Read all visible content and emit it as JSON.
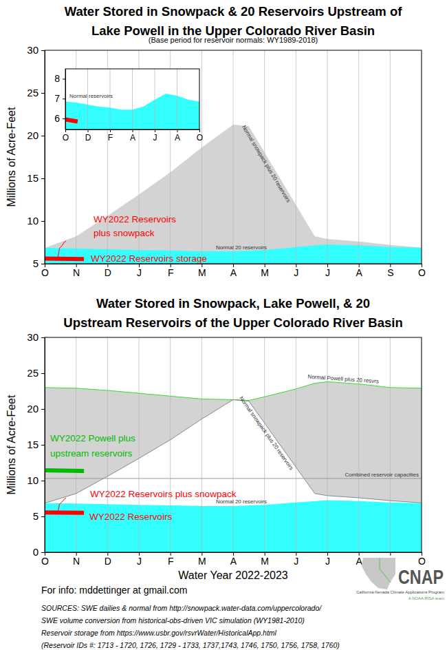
{
  "chart_data": [
    {
      "type": "area",
      "title": "Water Stored in Snowpack & 20 Reservoirs Upstream of\nLake Powell in the Upper Colorado River Basin",
      "subtitle": "(Base period for reservoir normals: WY1989-2018)",
      "y_label": "Millions of Acre-Feet",
      "xlim": [
        0,
        12
      ],
      "xticks": [
        {
          "value": 0,
          "label": "O"
        },
        {
          "value": 1,
          "label": "N"
        },
        {
          "value": 2,
          "label": "D"
        },
        {
          "value": 3,
          "label": "J"
        },
        {
          "value": 4,
          "label": "F"
        },
        {
          "value": 5,
          "label": "M"
        },
        {
          "value": 6,
          "label": "A"
        },
        {
          "value": 7,
          "label": "M"
        },
        {
          "value": 8,
          "label": "J"
        },
        {
          "value": 9,
          "label": "J"
        },
        {
          "value": 10,
          "label": "A"
        },
        {
          "value": 11,
          "label": "S"
        },
        {
          "value": 12,
          "label": "O"
        }
      ],
      "ylim": [
        5,
        30
      ],
      "yticks": [
        5,
        10,
        15,
        20,
        25,
        30
      ],
      "grid": "x",
      "series": [
        {
          "name": "Normal snowpack plus 20 reservoirs",
          "type": "area",
          "color": "#d3d3d3",
          "x": [
            0,
            1,
            2,
            3,
            4,
            5,
            6,
            6.5,
            8.6,
            9,
            10,
            11,
            12
          ],
          "values": [
            6.85,
            8.2,
            10.6,
            13.1,
            15.7,
            18.6,
            21.3,
            21.1,
            8.2,
            7.9,
            7.6,
            7.2,
            6.9
          ]
        },
        {
          "name": "Normal 20 reservoirs",
          "type": "area",
          "color": "#33ffff",
          "x": [
            0,
            1,
            2,
            3,
            4,
            5,
            6,
            7,
            8,
            9,
            10,
            11,
            12
          ],
          "values": [
            6.85,
            6.8,
            6.7,
            6.6,
            6.55,
            6.45,
            6.45,
            6.6,
            6.95,
            7.25,
            7.15,
            6.95,
            6.85
          ]
        },
        {
          "name": "WY2022 Reservoirs\nplus snowpack",
          "type": "line",
          "color": "#ff0000",
          "line_style": "solid",
          "x": [
            0,
            0.42,
            0.47,
            0.55,
            0.62,
            0.68
          ],
          "values": [
            5.65,
            5.7,
            6.8,
            7.1,
            7.5,
            7.65
          ]
        },
        {
          "name": "WY2022 Reservoirs storage",
          "type": "line",
          "color": "#ff0000",
          "line_style": "bold",
          "x": [
            0,
            1.25
          ],
          "values": [
            5.6,
            5.55
          ]
        }
      ]
    },
    {
      "type": "area",
      "xlim": [
        0,
        12
      ],
      "xticks": [
        {
          "value": 0,
          "label": "O"
        },
        {
          "value": 2,
          "label": "D"
        },
        {
          "value": 4,
          "label": "F"
        },
        {
          "value": 6,
          "label": "A"
        },
        {
          "value": 8,
          "label": "J"
        },
        {
          "value": 10,
          "label": "A"
        },
        {
          "value": 12,
          "label": "O"
        }
      ],
      "ylim": [
        5.45,
        8.5
      ],
      "yticks": [
        6,
        7,
        8
      ],
      "grid": "x",
      "series": [
        {
          "name": "Normal reservoirs",
          "type": "area",
          "color": "#33ffff",
          "x": [
            0,
            1,
            2,
            3,
            4,
            5,
            6,
            7,
            8,
            9,
            10,
            11,
            12
          ],
          "values": [
            6.85,
            6.8,
            6.7,
            6.6,
            6.55,
            6.45,
            6.45,
            6.6,
            6.95,
            7.25,
            7.15,
            6.95,
            6.85
          ]
        },
        {
          "type": "line",
          "color": "#ff0000",
          "line_style": "bold",
          "x": [
            0,
            1.1
          ],
          "values": [
            5.95,
            5.85
          ]
        }
      ]
    },
    {
      "type": "area",
      "title": "Water Stored in Snowpack, Lake Powell, & 20\nUpstream Reservoirs of the Upper Colorado River Basin",
      "y_label": "Millions of Acre-Feet",
      "x_label": "Water Year 2022-2023",
      "xlim": [
        0,
        12
      ],
      "xticks": [
        {
          "value": 0,
          "label": "O"
        },
        {
          "value": 1,
          "label": "N"
        },
        {
          "value": 2,
          "label": "D"
        },
        {
          "value": 3,
          "label": "J"
        },
        {
          "value": 4,
          "label": "F"
        },
        {
          "value": 5,
          "label": "M"
        },
        {
          "value": 6,
          "label": "A"
        },
        {
          "value": 7,
          "label": "M"
        },
        {
          "value": 8,
          "label": "J"
        },
        {
          "value": 9,
          "label": "J"
        },
        {
          "value": 10,
          "label": "A"
        },
        {
          "value": 11,
          "label": "S"
        },
        {
          "value": 12,
          "label": "O"
        }
      ],
      "ylim": [
        0,
        30
      ],
      "yticks": [
        0,
        5,
        10,
        15,
        20,
        25,
        30
      ],
      "grid": "x",
      "series": [
        {
          "type": "area",
          "color": "#d3d3d3",
          "x": [
            0,
            1,
            2,
            3,
            4,
            5,
            6,
            6.5,
            7,
            8,
            8.6,
            9,
            10,
            11,
            12
          ],
          "values": [
            23.0,
            22.9,
            22.6,
            22.2,
            21.8,
            21.4,
            21.3,
            21.2,
            21.7,
            22.8,
            23.6,
            23.8,
            23.5,
            23.0,
            22.9
          ]
        },
        {
          "name": "Normal Powell plus 20 resvrs",
          "type": "line",
          "color": "#33dd33",
          "line_style": "solid",
          "x": [
            0,
            1,
            2,
            3,
            4,
            5,
            6,
            6.5,
            7,
            8,
            8.6,
            9,
            10,
            11,
            12
          ],
          "values": [
            23.0,
            22.9,
            22.6,
            22.2,
            21.8,
            21.4,
            21.3,
            21.2,
            21.7,
            22.8,
            23.6,
            23.8,
            23.5,
            23.0,
            22.9
          ]
        },
        {
          "type": "area",
          "color": "#ffffff",
          "x": [
            0,
            1,
            2,
            3,
            4,
            5,
            6,
            6.5,
            8.6,
            9,
            10,
            11,
            12
          ],
          "values": [
            6.85,
            8.2,
            10.6,
            13.1,
            15.7,
            18.6,
            21.3,
            21.1,
            8.2,
            7.9,
            7.6,
            7.2,
            6.9
          ]
        },
        {
          "name": "Normal snowpack plus 20 reservoirs",
          "type": "line",
          "color": "#888888",
          "line_style": "solid",
          "x": [
            0,
            1,
            2,
            3,
            4,
            5,
            6,
            6.5,
            8.6,
            9,
            10,
            11,
            12
          ],
          "values": [
            6.85,
            8.2,
            10.6,
            13.1,
            15.7,
            18.6,
            21.3,
            21.1,
            8.2,
            7.9,
            7.6,
            7.2,
            6.9
          ]
        },
        {
          "name": "Normal 20 reservoirs",
          "type": "area",
          "color": "#33ffff",
          "x": [
            0,
            1,
            2,
            3,
            4,
            5,
            6,
            7,
            8,
            9,
            10,
            11,
            12
          ],
          "values": [
            6.85,
            6.8,
            6.7,
            6.6,
            6.55,
            6.45,
            6.45,
            6.6,
            6.95,
            7.25,
            7.15,
            6.95,
            6.85
          ]
        },
        {
          "name": "Combined reservoir capacities",
          "type": "line",
          "color": "#999999",
          "line_style": "solid",
          "x": [
            0,
            12
          ],
          "values": [
            10.3,
            10.3
          ]
        },
        {
          "name": "WY2022 Powell plus\nupstream reservoirs",
          "type": "line",
          "color": "#00bb00",
          "line_style": "bold",
          "x": [
            0,
            1.25
          ],
          "values": [
            11.45,
            11.35
          ]
        },
        {
          "name": "WY2022 Reservoirs plus snowpack",
          "type": "line",
          "color": "#ff0000",
          "line_style": "solid",
          "x": [
            0,
            0.42,
            0.47,
            0.55,
            0.62,
            0.68
          ],
          "values": [
            5.6,
            5.65,
            6.7,
            7.0,
            7.4,
            7.6
          ]
        },
        {
          "name": "WY2022 Reservoirs",
          "type": "line",
          "color": "#ff0000",
          "line_style": "bold",
          "x": [
            0,
            1.25
          ],
          "values": [
            5.55,
            5.5
          ]
        }
      ]
    }
  ],
  "footer": {
    "info": "For info: mddettinger at gmail.com",
    "sources": [
      "SOURCES: SWE dailies & normal from http://snowpack.water-data.com/uppercolorado/",
      "SWE volume conversion from historical-obs-driven VIC simulation (WY1981-2010)",
      "Reservoir storage from https://www.usbr.gov/rsvrWater/HistoricalApp.html",
      "(Reservoir IDs #: 1713 - 1720, 1726, 1729 - 1733, 1737,1743, 1746, 1750, 1756, 1758, 1760)"
    ],
    "logo": {
      "name": "CNAP",
      "caption": "California-Nevada Climate Applications Program",
      "subcaption": "A NOAA RISA team"
    }
  }
}
